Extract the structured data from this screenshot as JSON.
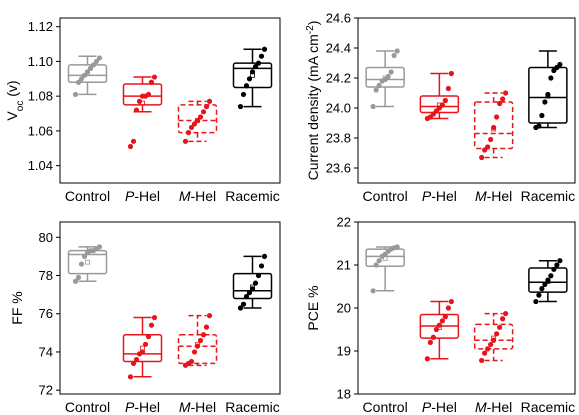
{
  "chart_data": [
    {
      "type": "box",
      "ylabel_main": "V",
      "ylabel_sub": "oc",
      "ylabel_unit": " (v)",
      "ylim": [
        1.03,
        1.125
      ],
      "yticks": [
        1.04,
        1.06,
        1.08,
        1.1,
        1.12
      ],
      "tick_labels": [
        "1.04",
        "1.06",
        "1.08",
        "1.10",
        "1.12"
      ],
      "categories": [
        {
          "prefix": "",
          "italic": "",
          "suffix": "Control"
        },
        {
          "prefix": "",
          "italic": "P",
          "suffix": "-Hel"
        },
        {
          "prefix": "",
          "italic": "M",
          "suffix": "-Hel"
        },
        {
          "prefix": "",
          "italic": "",
          "suffix": "Racemic"
        }
      ],
      "boxes": [
        {
          "color": "#999999",
          "dashed": false,
          "whisker_low": 1.081,
          "q1": 1.088,
          "median": 1.092,
          "mean": 1.093,
          "q3": 1.098,
          "whisker_high": 1.103,
          "points": [
            1.081,
            1.088,
            1.09,
            1.092,
            1.094,
            1.096,
            1.098,
            1.1,
            1.102
          ]
        },
        {
          "color": "#e8141a",
          "dashed": false,
          "whisker_low": 1.071,
          "q1": 1.075,
          "median": 1.08,
          "mean": 1.076,
          "q3": 1.087,
          "whisker_high": 1.091,
          "points": [
            1.051,
            1.054,
            1.072,
            1.077,
            1.08,
            1.08,
            1.081,
            1.088,
            1.091
          ]
        },
        {
          "color": "#e8141a",
          "dashed": true,
          "whisker_low": 1.054,
          "q1": 1.059,
          "median": 1.066,
          "mean": 1.066,
          "q3": 1.075,
          "whisker_high": 1.077,
          "points": [
            1.054,
            1.059,
            1.062,
            1.064,
            1.066,
            1.068,
            1.071,
            1.074,
            1.077
          ]
        },
        {
          "color": "#000000",
          "dashed": false,
          "whisker_low": 1.074,
          "q1": 1.085,
          "median": 1.096,
          "mean": 1.092,
          "q3": 1.099,
          "whisker_high": 1.107,
          "points": [
            1.074,
            1.081,
            1.086,
            1.09,
            1.094,
            1.097,
            1.099,
            1.103,
            1.107
          ]
        }
      ]
    },
    {
      "type": "box",
      "ylabel_main": "Current density (mA cm",
      "ylabel_sup": "-2",
      "ylabel_end": ")",
      "ylim": [
        23.5,
        24.6
      ],
      "yticks": [
        23.6,
        23.8,
        24.0,
        24.2,
        24.4,
        24.6
      ],
      "tick_labels": [
        "23.6",
        "23.8",
        "24.0",
        "24.2",
        "24.4",
        "24.6"
      ],
      "categories": [
        {
          "prefix": "",
          "italic": "",
          "suffix": "Control"
        },
        {
          "prefix": "",
          "italic": "P",
          "suffix": "-Hel"
        },
        {
          "prefix": "",
          "italic": "M",
          "suffix": "-Hel"
        },
        {
          "prefix": "",
          "italic": "",
          "suffix": "Racemic"
        }
      ],
      "boxes": [
        {
          "color": "#999999",
          "dashed": false,
          "whisker_low": 24.01,
          "q1": 24.14,
          "median": 24.19,
          "mean": 24.2,
          "q3": 24.27,
          "whisker_high": 24.38,
          "points": [
            24.01,
            24.12,
            24.15,
            24.18,
            24.19,
            24.21,
            24.24,
            24.35,
            24.38
          ]
        },
        {
          "color": "#e8141a",
          "dashed": false,
          "whisker_low": 23.93,
          "q1": 23.97,
          "median": 24.01,
          "mean": 24.02,
          "q3": 24.08,
          "whisker_high": 24.23,
          "points": [
            23.93,
            23.94,
            23.96,
            23.98,
            24.0,
            24.02,
            24.05,
            24.13,
            24.23
          ]
        },
        {
          "color": "#e8141a",
          "dashed": true,
          "whisker_low": 23.67,
          "q1": 23.73,
          "median": 23.83,
          "mean": 23.86,
          "q3": 24.04,
          "whisker_high": 24.1,
          "points": [
            23.67,
            23.72,
            23.74,
            23.79,
            23.87,
            23.94,
            24.03,
            24.06,
            24.1
          ]
        },
        {
          "color": "#000000",
          "dashed": false,
          "whisker_low": 23.87,
          "q1": 23.9,
          "median": 24.07,
          "mean": 24.08,
          "q3": 24.27,
          "whisker_high": 24.38,
          "points": [
            23.87,
            23.88,
            23.95,
            24.04,
            24.09,
            24.2,
            24.25,
            24.27,
            24.29
          ]
        }
      ]
    },
    {
      "type": "box",
      "ylabel_main": "FF %",
      "ylim": [
        71.8,
        80.8
      ],
      "yticks": [
        72,
        74,
        76,
        78,
        80
      ],
      "tick_labels": [
        "72",
        "74",
        "76",
        "78",
        "80"
      ],
      "categories": [
        {
          "prefix": "",
          "italic": "",
          "suffix": "Control"
        },
        {
          "prefix": "",
          "italic": "P",
          "suffix": "-Hel"
        },
        {
          "prefix": "",
          "italic": "M",
          "suffix": "-Hel"
        },
        {
          "prefix": "",
          "italic": "",
          "suffix": "Racemic"
        }
      ],
      "boxes": [
        {
          "color": "#999999",
          "dashed": false,
          "whisker_low": 77.7,
          "q1": 78.1,
          "median": 79.1,
          "mean": 78.7,
          "q3": 79.3,
          "whisker_high": 79.5,
          "points": [
            77.7,
            77.9,
            78.6,
            79.0,
            79.2,
            79.3,
            79.3,
            79.4,
            79.5
          ]
        },
        {
          "color": "#e8141a",
          "dashed": false,
          "whisker_low": 72.7,
          "q1": 73.5,
          "median": 73.9,
          "mean": 74.2,
          "q3": 74.9,
          "whisker_high": 75.8,
          "points": [
            72.7,
            73.4,
            73.6,
            73.9,
            74.0,
            74.4,
            74.8,
            75.4,
            75.8
          ]
        },
        {
          "color": "#e8141a",
          "dashed": true,
          "whisker_low": 73.3,
          "q1": 73.4,
          "median": 74.3,
          "mean": 74.4,
          "q3": 74.9,
          "whisker_high": 75.9,
          "points": [
            73.3,
            73.4,
            73.5,
            74.0,
            74.3,
            74.6,
            74.9,
            75.3,
            75.9
          ]
        },
        {
          "color": "#000000",
          "dashed": false,
          "whisker_low": 76.3,
          "q1": 76.8,
          "median": 77.2,
          "mean": 77.4,
          "q3": 78.1,
          "whisker_high": 79.0,
          "points": [
            76.3,
            76.5,
            76.9,
            77.1,
            77.3,
            77.6,
            78.0,
            78.5,
            79.0
          ]
        }
      ]
    },
    {
      "type": "box",
      "ylabel_main": "PCE %",
      "ylim": [
        18.0,
        22.0
      ],
      "yticks": [
        18,
        19,
        20,
        21,
        22
      ],
      "tick_labels": [
        "18",
        "19",
        "20",
        "21",
        "22"
      ],
      "categories": [
        {
          "prefix": "",
          "italic": "",
          "suffix": "Control"
        },
        {
          "prefix": "",
          "italic": "P",
          "suffix": "-Hel"
        },
        {
          "prefix": "",
          "italic": "M",
          "suffix": "-Hel"
        },
        {
          "prefix": "",
          "italic": "",
          "suffix": "Racemic"
        }
      ],
      "boxes": [
        {
          "color": "#999999",
          "dashed": false,
          "whisker_low": 20.4,
          "q1": 20.97,
          "median": 21.2,
          "mean": 21.15,
          "q3": 21.37,
          "whisker_high": 21.42,
          "points": [
            20.4,
            21.0,
            21.1,
            21.2,
            21.25,
            21.32,
            21.37,
            21.4,
            21.42
          ]
        },
        {
          "color": "#e8141a",
          "dashed": false,
          "whisker_low": 18.82,
          "q1": 19.3,
          "median": 19.58,
          "mean": 19.55,
          "q3": 19.85,
          "whisker_high": 20.15,
          "points": [
            18.82,
            19.2,
            19.32,
            19.5,
            19.6,
            19.7,
            19.8,
            20.0,
            20.15
          ]
        },
        {
          "color": "#e8141a",
          "dashed": true,
          "whisker_low": 18.78,
          "q1": 19.05,
          "median": 19.25,
          "mean": 19.3,
          "q3": 19.62,
          "whisker_high": 19.87,
          "points": [
            18.78,
            18.95,
            19.05,
            19.15,
            19.25,
            19.4,
            19.55,
            19.75,
            19.87
          ]
        },
        {
          "color": "#000000",
          "dashed": false,
          "whisker_low": 20.15,
          "q1": 20.37,
          "median": 20.6,
          "mean": 20.62,
          "q3": 20.93,
          "whisker_high": 21.1,
          "points": [
            20.15,
            20.3,
            20.45,
            20.55,
            20.65,
            20.75,
            20.9,
            21.0,
            21.1
          ]
        }
      ]
    }
  ]
}
